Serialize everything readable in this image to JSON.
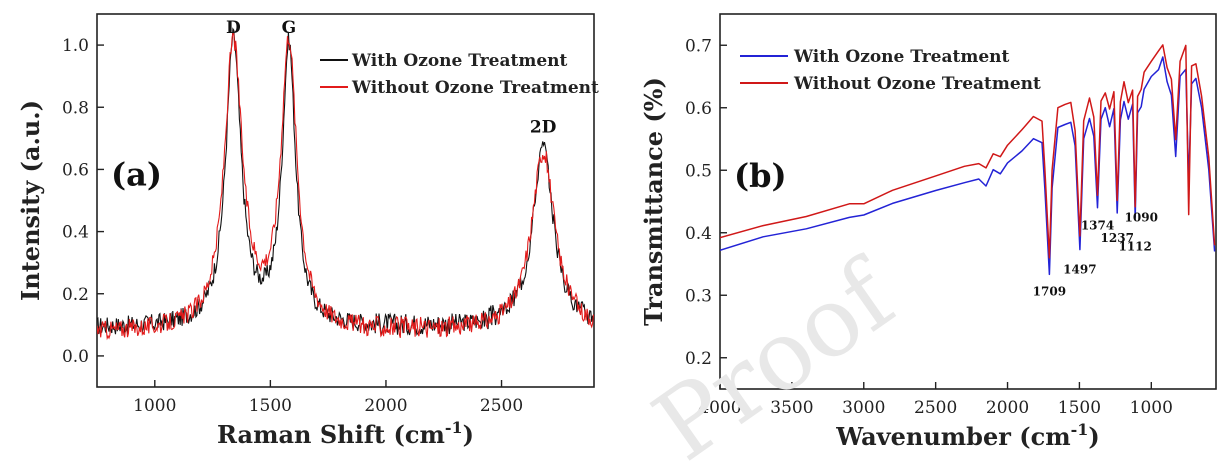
{
  "watermark": "Proof",
  "chart_data": [
    {
      "type": "line",
      "panel_label": "(a)",
      "xlabel": "Raman Shift (cm",
      "xlabel_sup": "-1",
      "xlabel_end": ")",
      "ylabel": "Intensity (a.u.)",
      "xlim": [
        750,
        2900
      ],
      "ylim": [
        -0.1,
        1.1
      ],
      "xticks": [
        1000,
        1500,
        2000,
        2500
      ],
      "yticks": [
        0.0,
        0.2,
        0.4,
        0.6,
        0.8,
        1.0
      ],
      "ytick_labels": [
        "0.0",
        "0.2",
        "0.4",
        "0.6",
        "0.8",
        "1.0"
      ],
      "legend_position": "top-right",
      "peak_labels": [
        {
          "text": "D",
          "x": 1340,
          "y": 1.02
        },
        {
          "text": "G",
          "x": 1580,
          "y": 1.02
        },
        {
          "text": "2D",
          "x": 2680,
          "y": 0.7
        }
      ],
      "series": [
        {
          "name": "With Ozone Treatment",
          "color": "#111111",
          "baseline": 0.09,
          "peaks": [
            {
              "x": 1340,
              "height": 0.92,
              "width": 40
            },
            {
              "x": 1580,
              "height": 0.9,
              "width": 35
            },
            {
              "x": 2680,
              "height": 0.58,
              "width": 55
            }
          ]
        },
        {
          "name": "Without Ozone Treatment",
          "color": "#e21b1b",
          "baseline": 0.075,
          "peaks": [
            {
              "x": 1340,
              "height": 0.92,
              "width": 48
            },
            {
              "x": 1580,
              "height": 0.92,
              "width": 42
            },
            {
              "x": 2680,
              "height": 0.58,
              "width": 62
            }
          ]
        }
      ]
    },
    {
      "type": "line",
      "panel_label": "(b)",
      "xlabel": "Wavenumber (cm",
      "xlabel_sup": "-1",
      "xlabel_end": ")",
      "ylabel": "Transmittance (%)",
      "xlim": [
        4000,
        550
      ],
      "ylim": [
        0.15,
        0.75
      ],
      "xticks": [
        4000,
        3500,
        3000,
        2500,
        2000,
        1500,
        1000
      ],
      "yticks": [
        0.2,
        0.3,
        0.4,
        0.5,
        0.6,
        0.7
      ],
      "ytick_labels": [
        "0.2",
        "0.3",
        "0.4",
        "0.5",
        "0.6",
        "0.7"
      ],
      "legend_position": "top-left",
      "annotations": [
        {
          "text": "1709",
          "x": 1709,
          "y": 0.3
        },
        {
          "text": "1497",
          "x": 1497,
          "y": 0.335
        },
        {
          "text": "1374",
          "x": 1374,
          "y": 0.405
        },
        {
          "text": "1237",
          "x": 1237,
          "y": 0.385
        },
        {
          "text": "1112",
          "x": 1112,
          "y": 0.372
        },
        {
          "text": "1090",
          "x": 1070,
          "y": 0.418
        }
      ],
      "series": [
        {
          "name": "With Ozone Treatment",
          "color": "#2323d6",
          "points": [
            [
              4000,
              0.372
            ],
            [
              3700,
              0.393
            ],
            [
              3400,
              0.408
            ],
            [
              3100,
              0.425
            ],
            [
              3000,
              0.43
            ],
            [
              2800,
              0.447
            ],
            [
              2500,
              0.468
            ],
            [
              2300,
              0.482
            ],
            [
              2200,
              0.485
            ],
            [
              2150,
              0.475
            ],
            [
              2100,
              0.5
            ],
            [
              2050,
              0.495
            ],
            [
              2000,
              0.51
            ],
            [
              1900,
              0.53
            ],
            [
              1820,
              0.55
            ],
            [
              1760,
              0.545
            ],
            [
              1740,
              0.47
            ],
            [
              1709,
              0.335
            ],
            [
              1690,
              0.47
            ],
            [
              1650,
              0.57
            ],
            [
              1600,
              0.575
            ],
            [
              1560,
              0.578
            ],
            [
              1530,
              0.54
            ],
            [
              1497,
              0.375
            ],
            [
              1470,
              0.55
            ],
            [
              1430,
              0.583
            ],
            [
              1400,
              0.555
            ],
            [
              1374,
              0.44
            ],
            [
              1350,
              0.58
            ],
            [
              1320,
              0.6
            ],
            [
              1290,
              0.57
            ],
            [
              1260,
              0.6
            ],
            [
              1237,
              0.43
            ],
            [
              1215,
              0.58
            ],
            [
              1190,
              0.61
            ],
            [
              1160,
              0.58
            ],
            [
              1130,
              0.605
            ],
            [
              1112,
              0.425
            ],
            [
              1095,
              0.59
            ],
            [
              1070,
              0.6
            ],
            [
              1050,
              0.63
            ],
            [
              1000,
              0.65
            ],
            [
              950,
              0.66
            ],
            [
              920,
              0.68
            ],
            [
              890,
              0.64
            ],
            [
              860,
              0.62
            ],
            [
              830,
              0.52
            ],
            [
              800,
              0.65
            ],
            [
              760,
              0.66
            ],
            [
              740,
              0.48
            ],
            [
              720,
              0.64
            ],
            [
              690,
              0.645
            ],
            [
              650,
              0.6
            ],
            [
              600,
              0.5
            ],
            [
              560,
              0.37
            ]
          ]
        },
        {
          "name": "Without Ozone Treatment",
          "color": "#d01818",
          "points": [
            [
              4000,
              0.392
            ],
            [
              3700,
              0.413
            ],
            [
              3400,
              0.428
            ],
            [
              3100,
              0.445
            ],
            [
              3000,
              0.448
            ],
            [
              2800,
              0.468
            ],
            [
              2500,
              0.49
            ],
            [
              2300,
              0.506
            ],
            [
              2200,
              0.51
            ],
            [
              2150,
              0.505
            ],
            [
              2100,
              0.528
            ],
            [
              2050,
              0.52
            ],
            [
              2000,
              0.54
            ],
            [
              1900,
              0.563
            ],
            [
              1820,
              0.585
            ],
            [
              1760,
              0.58
            ],
            [
              1740,
              0.5
            ],
            [
              1709,
              0.36
            ],
            [
              1690,
              0.5
            ],
            [
              1650,
              0.6
            ],
            [
              1600,
              0.605
            ],
            [
              1560,
              0.61
            ],
            [
              1530,
              0.565
            ],
            [
              1497,
              0.395
            ],
            [
              1470,
              0.58
            ],
            [
              1430,
              0.615
            ],
            [
              1400,
              0.585
            ],
            [
              1374,
              0.46
            ],
            [
              1350,
              0.61
            ],
            [
              1320,
              0.625
            ],
            [
              1290,
              0.6
            ],
            [
              1260,
              0.625
            ],
            [
              1237,
              0.45
            ],
            [
              1215,
              0.61
            ],
            [
              1190,
              0.64
            ],
            [
              1160,
              0.61
            ],
            [
              1130,
              0.63
            ],
            [
              1112,
              0.44
            ],
            [
              1095,
              0.62
            ],
            [
              1070,
              0.63
            ],
            [
              1050,
              0.655
            ],
            [
              1000,
              0.675
            ],
            [
              950,
              0.69
            ],
            [
              920,
              0.7
            ],
            [
              890,
              0.665
            ],
            [
              860,
              0.645
            ],
            [
              830,
              0.55
            ],
            [
              800,
              0.675
            ],
            [
              760,
              0.7
            ],
            [
              740,
              0.43
            ],
            [
              720,
              0.665
            ],
            [
              690,
              0.67
            ],
            [
              650,
              0.62
            ],
            [
              600,
              0.52
            ],
            [
              560,
              0.38
            ]
          ]
        }
      ]
    }
  ]
}
